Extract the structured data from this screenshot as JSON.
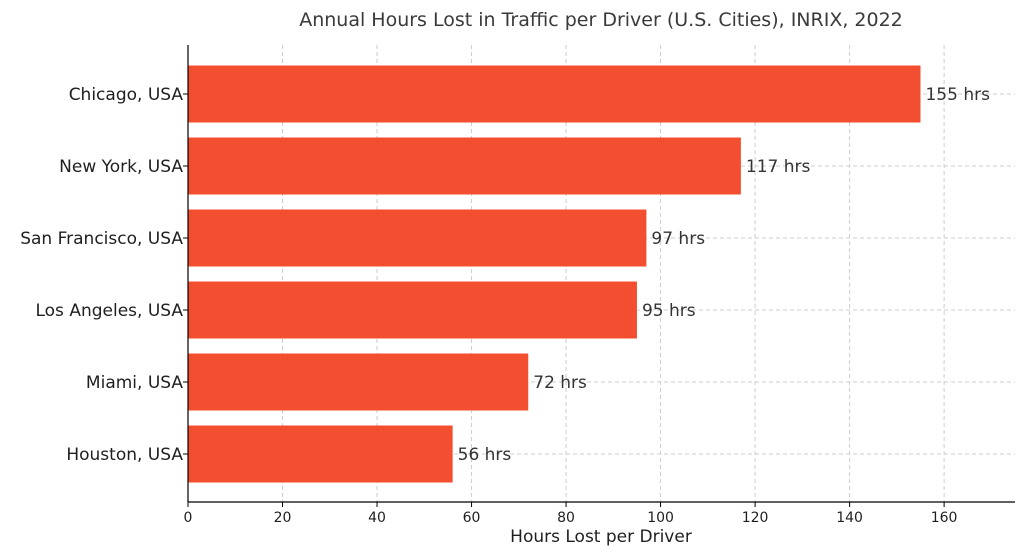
{
  "chart_data": {
    "type": "bar",
    "orientation": "horizontal",
    "title": "Annual Hours Lost in Traffic per Driver (U.S. Cities), INRIX, 2022",
    "xlabel": "Hours Lost per Driver",
    "ylabel": "",
    "categories": [
      "Chicago, USA",
      "New York, USA",
      "San Francisco, USA",
      "Los Angeles, USA",
      "Miami, USA",
      "Houston, USA"
    ],
    "values": [
      155,
      117,
      97,
      95,
      72,
      56
    ],
    "value_labels": [
      "155 hrs",
      "117 hrs",
      "97 hrs",
      "95 hrs",
      "72 hrs",
      "56 hrs"
    ],
    "xlim": [
      0,
      175
    ],
    "xticks": [
      0,
      20,
      40,
      60,
      80,
      100,
      120,
      140,
      160
    ],
    "xtick_labels": [
      "0",
      "20",
      "40",
      "60",
      "80",
      "100",
      "120",
      "140",
      "160"
    ],
    "grid": true,
    "bar_color": "#f44e30"
  }
}
